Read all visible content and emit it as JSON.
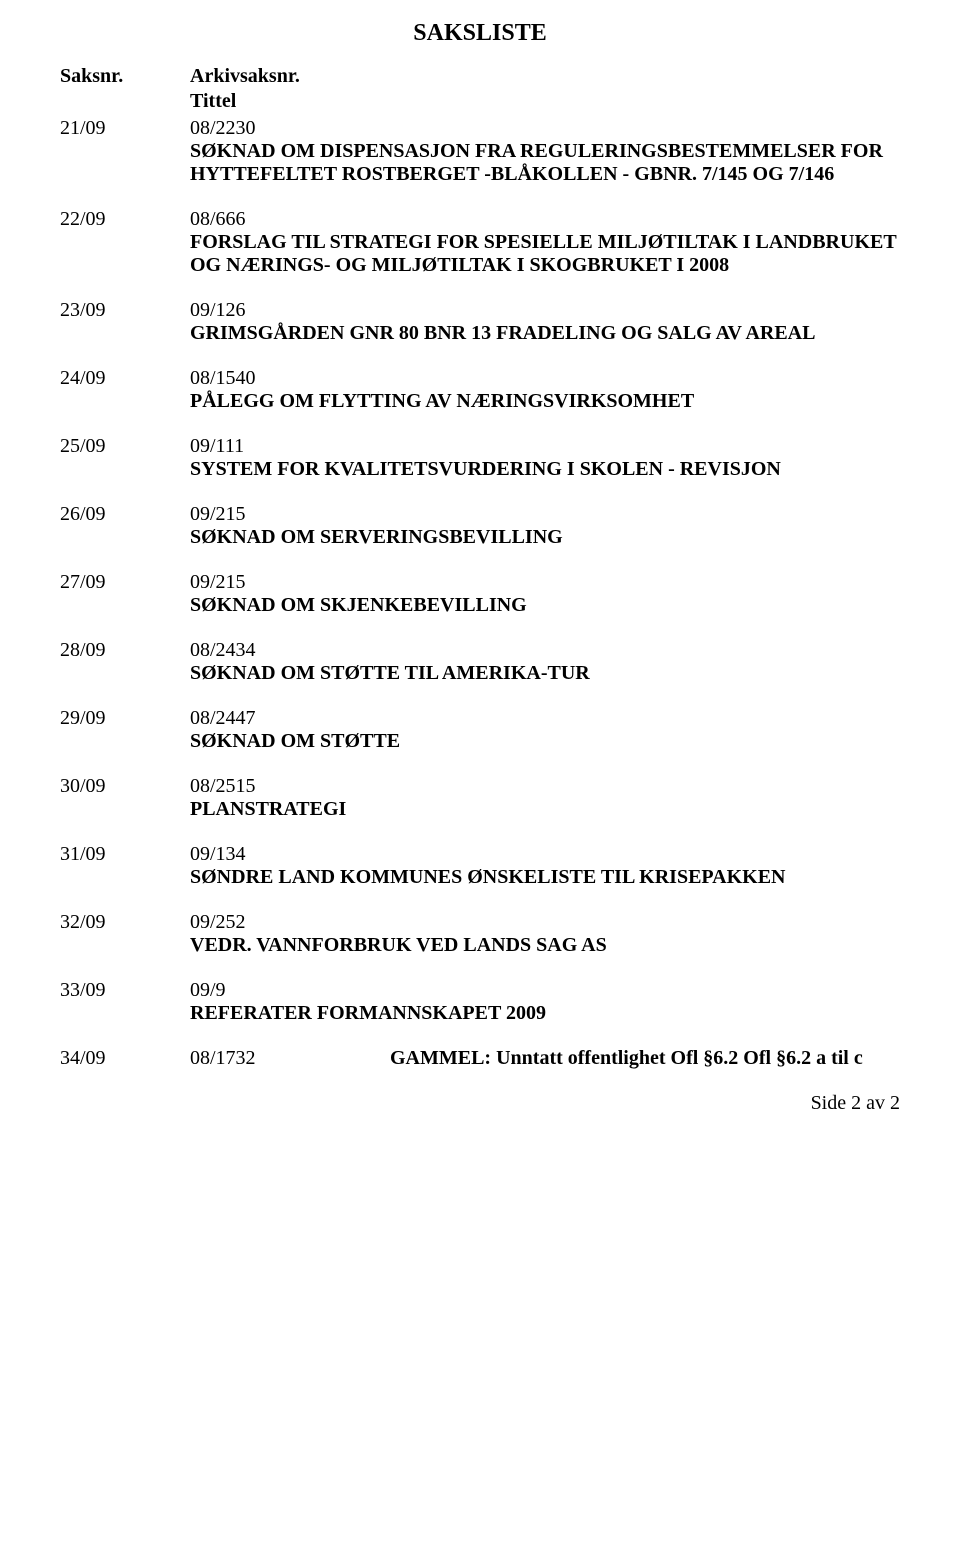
{
  "title": "SAKSLISTE",
  "headers": {
    "saksnr": "Saksnr.",
    "arkivsaksnr": "Arkivsaksnr.",
    "tittel": "Tittel"
  },
  "items": [
    {
      "num": "21/09",
      "arkiv": "08/2230",
      "text": "SØKNAD OM DISPENSASJON FRA REGULERINGSBESTEMMELSER FOR HYTTEFELTET ROSTBERGET -BLÅKOLLEN - GBNR. 7/145 OG 7/146"
    },
    {
      "num": "22/09",
      "arkiv": "08/666",
      "text": "FORSLAG TIL STRATEGI FOR SPESIELLE MILJØTILTAK I LANDBRUKET  OG NÆRINGS- OG MILJØTILTAK I SKOGBRUKET I 2008"
    },
    {
      "num": "23/09",
      "arkiv": "09/126",
      "text": "GRIMSGÅRDEN GNR 80 BNR 13 FRADELING OG SALG AV AREAL"
    },
    {
      "num": "24/09",
      "arkiv": "08/1540",
      "text": "PÅLEGG OM FLYTTING AV NÆRINGSVIRKSOMHET"
    },
    {
      "num": "25/09",
      "arkiv": "09/111",
      "text": "SYSTEM FOR KVALITETSVURDERING I SKOLEN - REVISJON"
    },
    {
      "num": "26/09",
      "arkiv": "09/215",
      "text": "SØKNAD OM  SERVERINGSBEVILLING"
    },
    {
      "num": "27/09",
      "arkiv": "09/215",
      "text": "SØKNAD OM   SKJENKEBEVILLING"
    },
    {
      "num": "28/09",
      "arkiv": "08/2434",
      "text": "SØKNAD OM STØTTE TIL AMERIKA-TUR"
    },
    {
      "num": "29/09",
      "arkiv": "08/2447",
      "text": "SØKNAD OM STØTTE"
    },
    {
      "num": "30/09",
      "arkiv": "08/2515",
      "text": " PLANSTRATEGI"
    },
    {
      "num": "31/09",
      "arkiv": "09/134",
      "text": "SØNDRE LAND KOMMUNES ØNSKELISTE TIL KRISEPAKKEN"
    },
    {
      "num": "32/09",
      "arkiv": "09/252",
      "text": " VEDR. VANNFORBRUK VED LANDS SAG AS"
    },
    {
      "num": "33/09",
      "arkiv": "09/9",
      "text": "REFERATER FORMANNSKAPET 2009"
    }
  ],
  "inline_item": {
    "num": "34/09",
    "arkiv": "08/1732",
    "text": "GAMMEL: Unntatt offentlighet Ofl §6.2 Ofl §6.2 a til c"
  },
  "footer": "Side 2 av 2"
}
